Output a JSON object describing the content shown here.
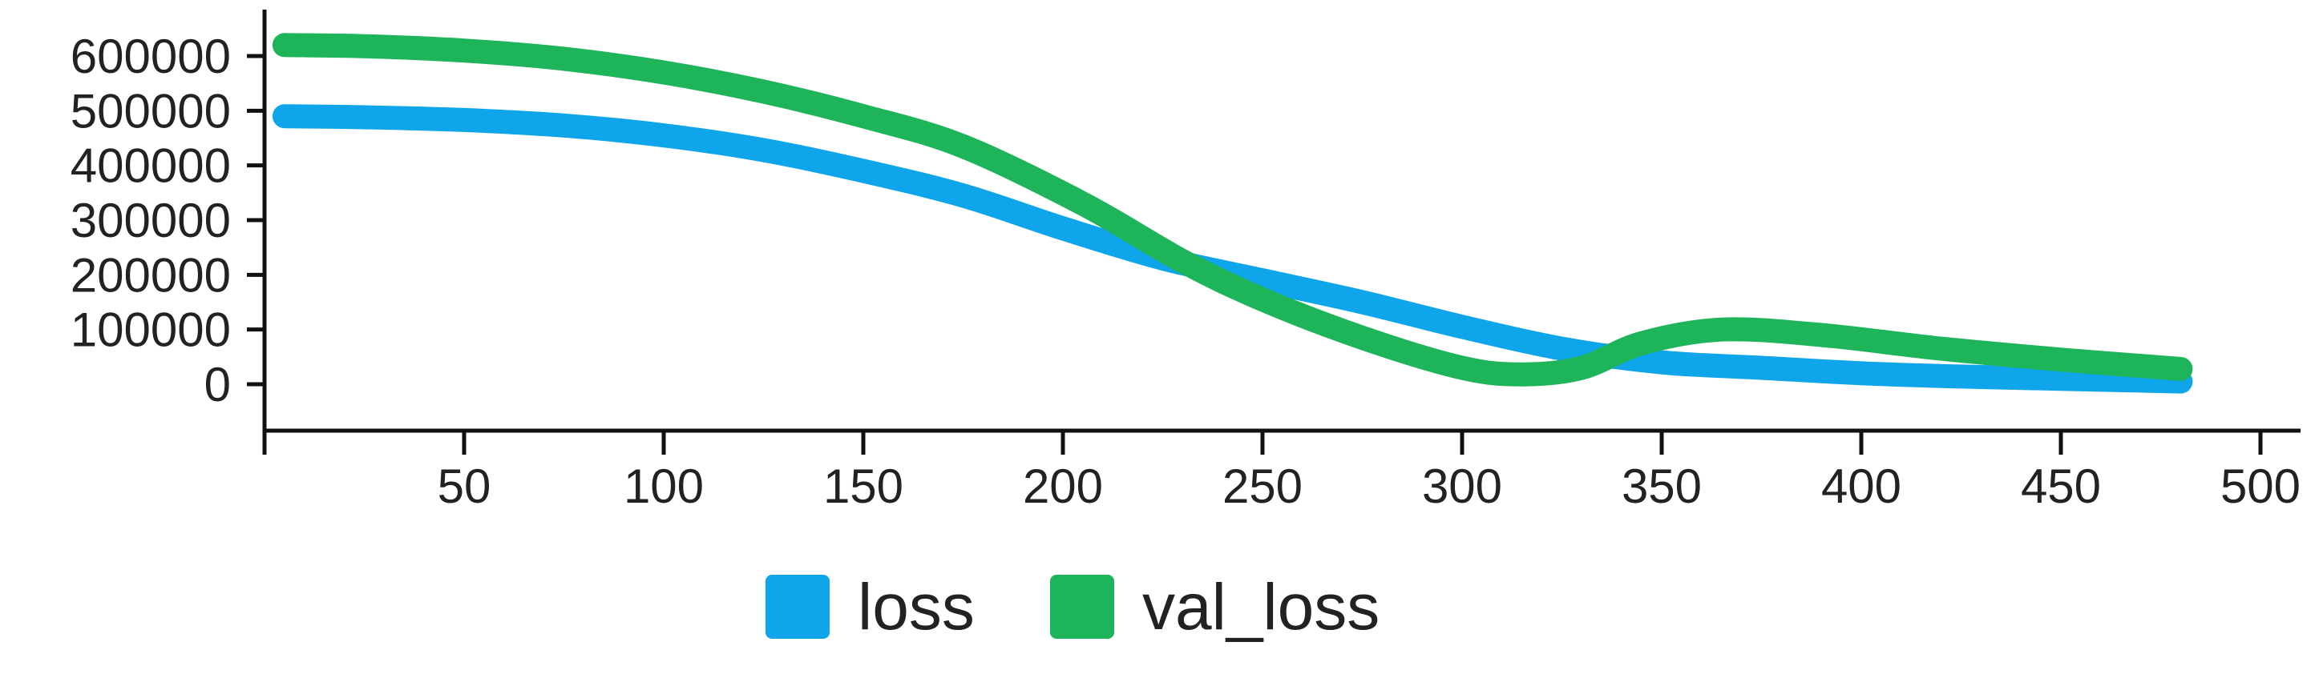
{
  "chart_data": {
    "type": "line",
    "title": "",
    "xlabel": "",
    "ylabel": "",
    "xlim": [
      0,
      500
    ],
    "ylim": [
      -50000,
      650000
    ],
    "x_ticks": [
      50,
      100,
      150,
      200,
      250,
      300,
      350,
      400,
      450,
      500
    ],
    "x_tick_labels": [
      "50",
      "100",
      "150",
      "200",
      "250",
      "300",
      "350",
      "400",
      "450",
      "500"
    ],
    "y_ticks": [
      0,
      100000,
      200000,
      300000,
      400000,
      500000,
      600000
    ],
    "y_tick_labels": [
      "0",
      "100000",
      "200000",
      "300000",
      "400000",
      "500000",
      "600000"
    ],
    "grid": false,
    "legend_position": "bottom",
    "series": [
      {
        "name": "loss",
        "color": "#0ea5ea",
        "points": [
          [
            5,
            490000
          ],
          [
            25,
            488000
          ],
          [
            50,
            483000
          ],
          [
            75,
            473000
          ],
          [
            100,
            455000
          ],
          [
            125,
            428000
          ],
          [
            150,
            390000
          ],
          [
            175,
            345000
          ],
          [
            200,
            285000
          ],
          [
            225,
            230000
          ],
          [
            250,
            190000
          ],
          [
            275,
            150000
          ],
          [
            300,
            105000
          ],
          [
            325,
            65000
          ],
          [
            350,
            40000
          ],
          [
            375,
            30000
          ],
          [
            400,
            20000
          ],
          [
            425,
            14000
          ],
          [
            450,
            10000
          ],
          [
            480,
            5000
          ]
        ]
      },
      {
        "name": "val_loss",
        "color": "#1eb55a",
        "points": [
          [
            5,
            620000
          ],
          [
            25,
            618000
          ],
          [
            50,
            610000
          ],
          [
            75,
            595000
          ],
          [
            100,
            570000
          ],
          [
            125,
            535000
          ],
          [
            150,
            490000
          ],
          [
            175,
            435000
          ],
          [
            205,
            330000
          ],
          [
            230,
            225000
          ],
          [
            250,
            155000
          ],
          [
            275,
            85000
          ],
          [
            300,
            30000
          ],
          [
            315,
            18000
          ],
          [
            330,
            30000
          ],
          [
            345,
            75000
          ],
          [
            365,
            100000
          ],
          [
            390,
            90000
          ],
          [
            420,
            65000
          ],
          [
            450,
            45000
          ],
          [
            480,
            28000
          ]
        ]
      }
    ]
  }
}
